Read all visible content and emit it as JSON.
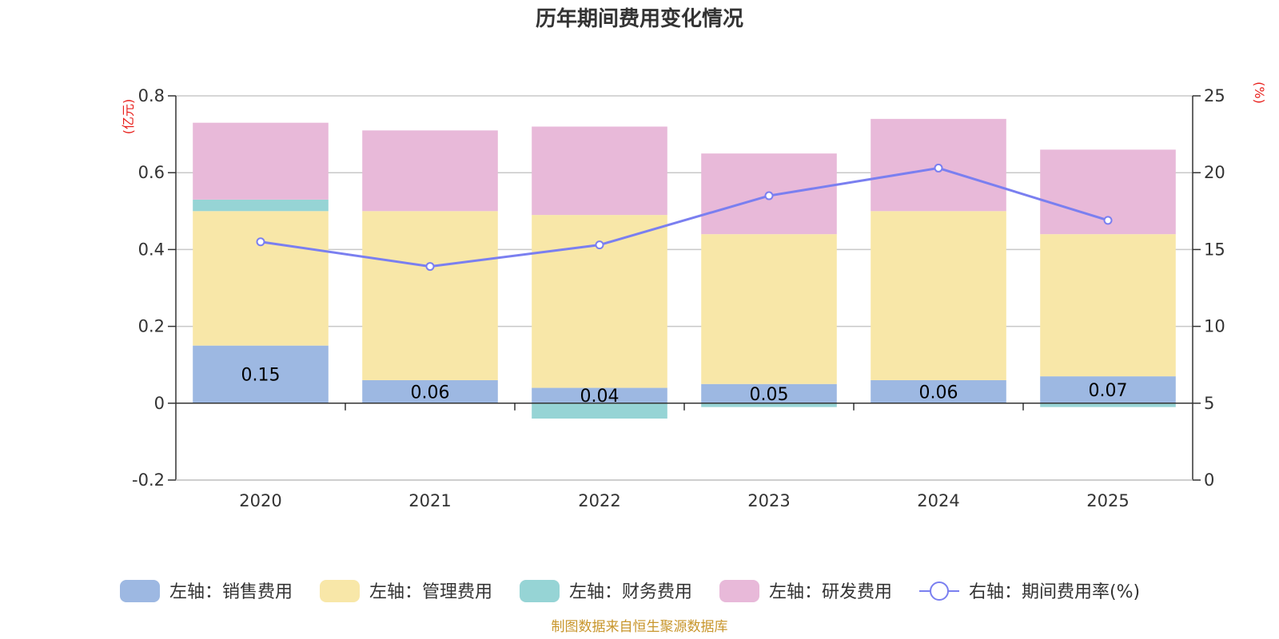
{
  "chart_data": {
    "type": "bar",
    "title": "历年期间费用变化情况",
    "categories": [
      "2020",
      "2021",
      "2022",
      "2023",
      "2024",
      "2025"
    ],
    "series": [
      {
        "name": "左轴：销售费用",
        "axis": "left",
        "color": "#9db8e2",
        "values": [
          0.15,
          0.06,
          0.04,
          0.05,
          0.06,
          0.07
        ],
        "data_labels": [
          "0.15",
          "0.06",
          "0.04",
          "0.05",
          "0.06",
          "0.07"
        ]
      },
      {
        "name": "左轴：管理费用",
        "axis": "left",
        "color": "#f8e7a8",
        "values": [
          0.35,
          0.44,
          0.45,
          0.39,
          0.44,
          0.37
        ]
      },
      {
        "name": "左轴：财务费用",
        "axis": "left",
        "color": "#96d4d5",
        "values": [
          0.03,
          0.0,
          -0.04,
          -0.01,
          0.0,
          -0.01
        ]
      },
      {
        "name": "左轴：研发费用",
        "axis": "left",
        "color": "#e8b9d9",
        "values": [
          0.2,
          0.21,
          0.23,
          0.21,
          0.24,
          0.22
        ]
      },
      {
        "name": "右轴：期间费用率(%)",
        "axis": "right",
        "type": "line",
        "color": "#7a7ff0",
        "values": [
          15.5,
          13.9,
          15.3,
          18.5,
          20.3,
          16.9
        ]
      }
    ],
    "left_axis": {
      "unit": "(亿元)",
      "ylim": [
        -0.2,
        0.8
      ],
      "ticks": [
        -0.2,
        0,
        0.2,
        0.4,
        0.6,
        0.8
      ],
      "tick_labels": [
        "-0.2",
        "0",
        "0.2",
        "0.4",
        "0.6",
        "0.8"
      ]
    },
    "right_axis": {
      "unit": "(%)",
      "ylim": [
        0,
        25
      ],
      "ticks": [
        0,
        5,
        10,
        15,
        20,
        25
      ],
      "tick_labels": [
        "0",
        "5",
        "10",
        "15",
        "20",
        "25"
      ]
    },
    "grid": true,
    "legend_position": "bottom",
    "source": "制图数据来自恒生聚源数据库"
  }
}
